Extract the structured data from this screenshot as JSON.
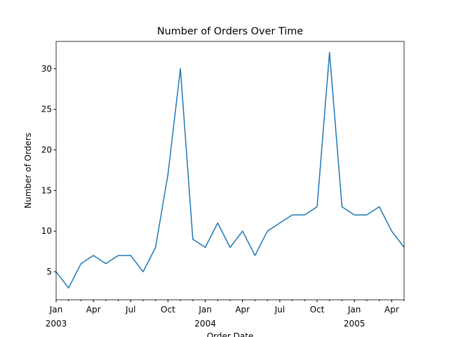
{
  "chart_data": {
    "type": "line",
    "title": "Number of Orders Over Time",
    "xlabel": "Order Date",
    "ylabel": "Number of Orders",
    "x": [
      "2003-01",
      "2003-02",
      "2003-03",
      "2003-04",
      "2003-05",
      "2003-06",
      "2003-07",
      "2003-08",
      "2003-09",
      "2003-10",
      "2003-11",
      "2003-12",
      "2004-01",
      "2004-02",
      "2004-03",
      "2004-04",
      "2004-05",
      "2004-06",
      "2004-07",
      "2004-08",
      "2004-09",
      "2004-10",
      "2004-11",
      "2004-12",
      "2005-01",
      "2005-02",
      "2005-03",
      "2005-04",
      "2005-05"
    ],
    "series": [
      {
        "name": "Number of Orders",
        "color": "#1f77b4",
        "values": [
          5,
          3,
          6,
          7,
          6,
          7,
          7,
          5,
          8,
          17,
          30,
          9,
          8,
          11,
          8,
          10,
          7,
          10,
          11,
          12,
          12,
          13,
          32,
          13,
          12,
          12,
          13,
          10,
          8
        ]
      }
    ],
    "xlim": [
      "2003-01",
      "2005-05"
    ],
    "xticks": [
      {
        "value": "2003-01",
        "label": "Jan"
      },
      {
        "value": "2003-04",
        "label": "Apr"
      },
      {
        "value": "2003-07",
        "label": "Jul"
      },
      {
        "value": "2003-10",
        "label": "Oct"
      },
      {
        "value": "2004-01",
        "label": "Jan"
      },
      {
        "value": "2004-04",
        "label": "Apr"
      },
      {
        "value": "2004-07",
        "label": "Jul"
      },
      {
        "value": "2004-10",
        "label": "Oct"
      },
      {
        "value": "2005-01",
        "label": "Jan"
      },
      {
        "value": "2005-04",
        "label": "Apr"
      }
    ],
    "xtick_years": [
      {
        "value": "2003-01",
        "label": "2003"
      },
      {
        "value": "2004-01",
        "label": "2004"
      },
      {
        "value": "2005-01",
        "label": "2005"
      }
    ],
    "ylim": [
      1.55,
      33.35
    ],
    "yticks": [
      5,
      10,
      15,
      20,
      25,
      30
    ],
    "grid": false
  }
}
